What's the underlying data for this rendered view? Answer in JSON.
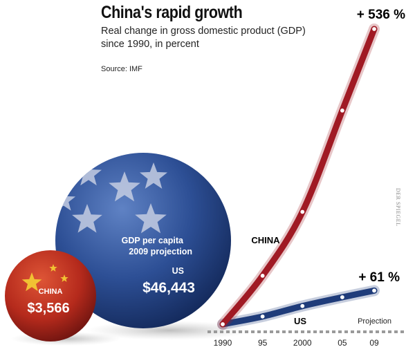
{
  "chart_data": {
    "type": "line",
    "title": "China's rapid growth",
    "subtitle": "Real change in gross domestic product (GDP) since 1990, in percent",
    "source": "Source: IMF",
    "credit": "DER SPIEGEL",
    "x_tick_labels": [
      "1990",
      "95",
      "2000",
      "05",
      "09"
    ],
    "x_values": [
      1990,
      1995,
      2000,
      2005,
      2009
    ],
    "ylim": [
      0,
      536
    ],
    "projection_label": "Projection",
    "series": [
      {
        "name": "CHINA",
        "color": "#a01a24",
        "x": [
          1990,
          1995,
          2000,
          2005,
          2009
        ],
        "values": [
          0,
          88,
          204,
          388,
          536
        ],
        "end_label": "+ 536 %"
      },
      {
        "name": "US",
        "color": "#1f3c7a",
        "x": [
          1990,
          1995,
          2000,
          2005,
          2009
        ],
        "values": [
          0,
          14,
          33,
          49,
          61
        ],
        "end_label": "+ 61 %"
      }
    ],
    "gdp_per_capita": {
      "caption_line1": "GDP per capita",
      "caption_line2": "2009 projection",
      "us": {
        "label": "US",
        "value": "$46,443",
        "color": "#1f3c7a"
      },
      "china": {
        "label": "CHINA",
        "value": "$3,566",
        "color": "#b3271c"
      }
    }
  }
}
